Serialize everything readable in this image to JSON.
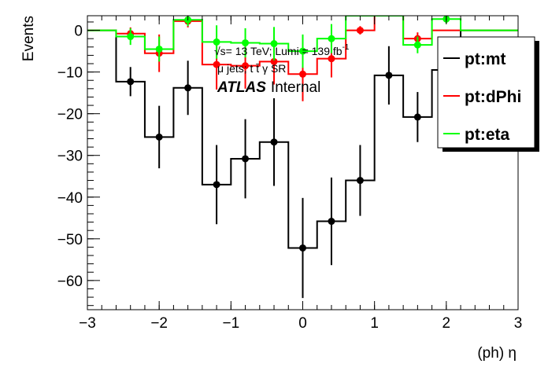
{
  "chart_data": {
    "type": "step-histogram",
    "xlabel": "(ph) η",
    "ylabel": "Events",
    "xlim": [
      -3,
      3
    ],
    "ylim": [
      -67,
      3.5
    ],
    "x_ticks": [
      -3,
      -2,
      -1,
      0,
      1,
      2,
      3
    ],
    "y_ticks": [
      0,
      -10,
      -20,
      -30,
      -40,
      -50,
      -60
    ],
    "x_tick_labels": [
      "−3",
      "−2",
      "−1",
      "0",
      "1",
      "2",
      "3"
    ],
    "y_tick_labels": [
      "0",
      "−10",
      "−20",
      "−30",
      "−40",
      "−50",
      "−60"
    ],
    "bin_edges": [
      -3.0,
      -2.6,
      -2.2,
      -1.8,
      -1.4,
      -1.0,
      -0.6,
      -0.2,
      0.2,
      0.6,
      1.0,
      1.4,
      1.8,
      2.2,
      2.6,
      3.0
    ],
    "annotations": {
      "line1": "√s= 13 TeV; Lumi = 139 fb",
      "line1_sup": "-1",
      "line2": "μ jets; t t̄ γ SR",
      "atlas": "ATLAS",
      "internal": "Internal"
    },
    "legend_position": "top-right",
    "series": [
      {
        "name": "pt:mt",
        "color": "#000000",
        "values": [
          0,
          -12.3,
          -25.6,
          -13.8,
          -37.0,
          -30.8,
          -26.8,
          -52.2,
          -45.8,
          -36.0,
          -10.8,
          -20.8,
          -9.5,
          0,
          0
        ],
        "errors": [
          0,
          3.5,
          7.5,
          6.5,
          9.5,
          9.5,
          10.5,
          12.0,
          10.5,
          8.5,
          7.0,
          6.0,
          6.0,
          0,
          0
        ],
        "show_points": [
          false,
          true,
          true,
          true,
          true,
          true,
          true,
          true,
          true,
          true,
          true,
          true,
          false,
          false,
          false
        ]
      },
      {
        "name": "pt:dPhi",
        "color": "#ff0000",
        "values": [
          0,
          -0.8,
          -5.5,
          2.2,
          -8.2,
          -8.5,
          -7.5,
          -10.5,
          -6.8,
          0.0,
          3.5,
          -2.0,
          0,
          0,
          0
        ],
        "errors": [
          0,
          1.5,
          4.5,
          1.5,
          6.0,
          5.5,
          5.5,
          6.5,
          4.5,
          1.0,
          0,
          1.5,
          0,
          0,
          0
        ],
        "show_points": [
          false,
          true,
          true,
          true,
          true,
          true,
          true,
          true,
          true,
          true,
          false,
          true,
          false,
          false,
          false
        ]
      },
      {
        "name": "pt:eta",
        "color": "#00ff00",
        "values": [
          0,
          -1.5,
          -4.5,
          2.5,
          -2.8,
          -3.0,
          -3.2,
          -5.0,
          -2.0,
          3.5,
          3.5,
          -3.5,
          2.7,
          0,
          0
        ],
        "errors": [
          0,
          2.0,
          3.0,
          1.5,
          4.0,
          3.5,
          4.0,
          4.0,
          3.5,
          0,
          0,
          2.0,
          1.0,
          0,
          0
        ],
        "show_points": [
          false,
          true,
          true,
          true,
          true,
          true,
          true,
          true,
          true,
          false,
          false,
          true,
          true,
          false,
          false
        ]
      }
    ]
  }
}
